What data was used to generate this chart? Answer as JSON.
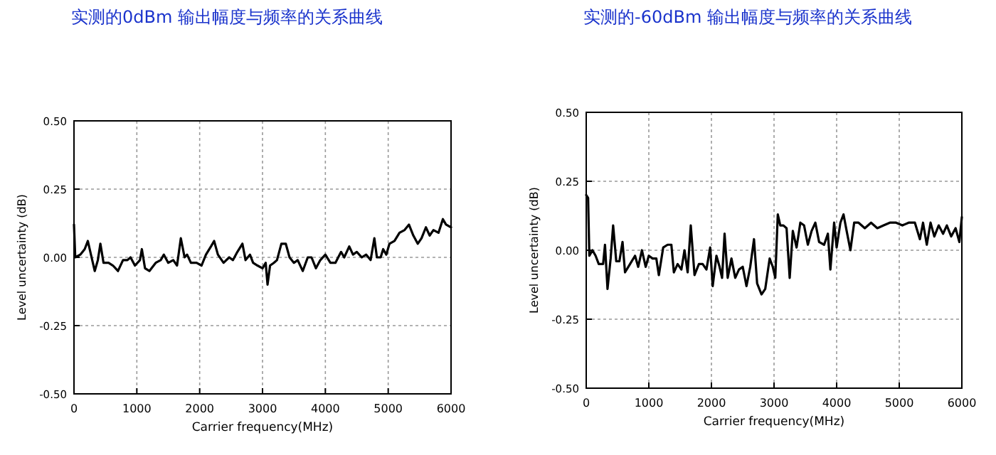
{
  "chart_data": [
    {
      "type": "line",
      "title": "实测的0dBm 输出幅度与频率的关系曲线",
      "xlabel": "Carrier frequency(MHz)",
      "ylabel": "Level uncertainty (dB)",
      "xlim": [
        0,
        6000
      ],
      "xticks": [
        0,
        1000,
        2000,
        3000,
        4000,
        5000,
        6000
      ],
      "ylim": [
        -0.5,
        0.5
      ],
      "yticks": [
        {
          "value": -0.5,
          "label": "-0.50"
        },
        {
          "value": -0.25,
          "label": "-0.25"
        },
        {
          "value": 0,
          "label": "0.00"
        },
        {
          "value": 0.25,
          "label": "0.25"
        },
        {
          "value": 0.5,
          "label": "0.50"
        }
      ],
      "grid": true,
      "line_style": "solid",
      "x": [
        0,
        20,
        100,
        170,
        220,
        280,
        330,
        380,
        420,
        470,
        550,
        620,
        700,
        780,
        850,
        900,
        970,
        1050,
        1080,
        1130,
        1200,
        1300,
        1380,
        1430,
        1500,
        1580,
        1640,
        1700,
        1760,
        1800,
        1860,
        1950,
        2030,
        2100,
        2180,
        2230,
        2290,
        2380,
        2470,
        2530,
        2600,
        2680,
        2730,
        2800,
        2850,
        2920,
        3000,
        3050,
        3080,
        3120,
        3180,
        3230,
        3300,
        3370,
        3430,
        3500,
        3560,
        3640,
        3720,
        3780,
        3850,
        3920,
        4000,
        4080,
        4160,
        4250,
        4300,
        4380,
        4440,
        4500,
        4580,
        4650,
        4720,
        4780,
        4820,
        4880,
        4920,
        4970,
        5020,
        5100,
        5180,
        5260,
        5330,
        5400,
        5470,
        5530,
        5600,
        5660,
        5720,
        5800,
        5870,
        5920,
        6000
      ],
      "series": [
        {
          "color": "#000000",
          "values": [
            0.12,
            0.0,
            0.01,
            0.03,
            0.06,
            0.0,
            -0.05,
            -0.01,
            0.05,
            -0.02,
            -0.02,
            -0.03,
            -0.05,
            -0.01,
            -0.01,
            0.0,
            -0.03,
            -0.01,
            0.03,
            -0.04,
            -0.05,
            -0.02,
            -0.01,
            0.01,
            -0.02,
            -0.01,
            -0.03,
            0.07,
            0.0,
            0.01,
            -0.02,
            -0.02,
            -0.03,
            0.01,
            0.04,
            0.06,
            0.01,
            -0.02,
            0.0,
            -0.01,
            0.02,
            0.05,
            -0.01,
            0.01,
            -0.02,
            -0.03,
            -0.04,
            -0.02,
            -0.1,
            -0.03,
            -0.02,
            -0.01,
            0.05,
            0.05,
            0.0,
            -0.02,
            -0.01,
            -0.05,
            0.0,
            0.0,
            -0.04,
            -0.01,
            0.01,
            -0.02,
            -0.02,
            0.02,
            0.0,
            0.04,
            0.01,
            0.02,
            0.0,
            0.01,
            -0.01,
            0.07,
            0.0,
            0.0,
            0.03,
            0.01,
            0.05,
            0.06,
            0.09,
            0.1,
            0.12,
            0.08,
            0.05,
            0.07,
            0.11,
            0.08,
            0.1,
            0.09,
            0.14,
            0.12,
            0.11
          ]
        }
      ]
    },
    {
      "type": "line",
      "title": "实测的-60dBm 输出幅度与频率的关系曲线",
      "xlabel": "Carrier frequency(MHz)",
      "ylabel": "Level uncertainty (dB)",
      "xlim": [
        0,
        6000
      ],
      "xticks": [
        0,
        1000,
        2000,
        3000,
        4000,
        5000,
        6000
      ],
      "ylim": [
        -0.5,
        0.5
      ],
      "yticks": [
        {
          "value": -0.5,
          "label": "-0.50"
        },
        {
          "value": -0.25,
          "label": "-0.25"
        },
        {
          "value": 0,
          "label": "0.00"
        },
        {
          "value": 0.25,
          "label": "0.25"
        },
        {
          "value": 0.5,
          "label": "0.50"
        }
      ],
      "grid": true,
      "line_style": "solid",
      "x": [
        0,
        30,
        50,
        100,
        150,
        200,
        270,
        300,
        340,
        390,
        430,
        480,
        530,
        580,
        620,
        700,
        780,
        830,
        890,
        950,
        1000,
        1060,
        1120,
        1160,
        1230,
        1300,
        1360,
        1400,
        1460,
        1520,
        1570,
        1620,
        1670,
        1730,
        1800,
        1860,
        1920,
        1980,
        2020,
        2080,
        2130,
        2170,
        2210,
        2260,
        2320,
        2380,
        2440,
        2500,
        2560,
        2620,
        2680,
        2730,
        2800,
        2860,
        2930,
        2980,
        3020,
        3060,
        3100,
        3150,
        3200,
        3250,
        3300,
        3360,
        3420,
        3480,
        3540,
        3600,
        3660,
        3720,
        3800,
        3860,
        3900,
        3960,
        4000,
        4060,
        4110,
        4160,
        4220,
        4280,
        4350,
        4450,
        4550,
        4650,
        4750,
        4850,
        4950,
        5050,
        5150,
        5250,
        5330,
        5380,
        5440,
        5500,
        5560,
        5630,
        5700,
        5760,
        5830,
        5900,
        5960,
        6000
      ],
      "series": [
        {
          "color": "#000000",
          "values": [
            0.2,
            0.19,
            -0.02,
            0.0,
            -0.02,
            -0.05,
            -0.05,
            0.02,
            -0.14,
            -0.03,
            0.09,
            -0.04,
            -0.04,
            0.03,
            -0.08,
            -0.05,
            -0.02,
            -0.06,
            0.0,
            -0.06,
            -0.02,
            -0.03,
            -0.03,
            -0.09,
            0.01,
            0.02,
            0.02,
            -0.08,
            -0.05,
            -0.07,
            0.0,
            -0.08,
            0.09,
            -0.09,
            -0.05,
            -0.05,
            -0.07,
            0.01,
            -0.13,
            -0.02,
            -0.06,
            -0.1,
            0.06,
            -0.1,
            -0.03,
            -0.1,
            -0.07,
            -0.06,
            -0.13,
            -0.06,
            0.04,
            -0.12,
            -0.16,
            -0.14,
            -0.03,
            -0.06,
            -0.1,
            0.13,
            0.09,
            0.09,
            0.08,
            -0.1,
            0.07,
            0.01,
            0.1,
            0.09,
            0.02,
            0.07,
            0.1,
            0.03,
            0.02,
            0.06,
            -0.07,
            0.1,
            0.01,
            0.1,
            0.13,
            0.07,
            0.0,
            0.1,
            0.1,
            0.08,
            0.1,
            0.08,
            0.09,
            0.1,
            0.1,
            0.09,
            0.1,
            0.1,
            0.04,
            0.1,
            0.02,
            0.1,
            0.05,
            0.09,
            0.06,
            0.09,
            0.05,
            0.08,
            0.03,
            0.12
          ]
        }
      ]
    }
  ]
}
